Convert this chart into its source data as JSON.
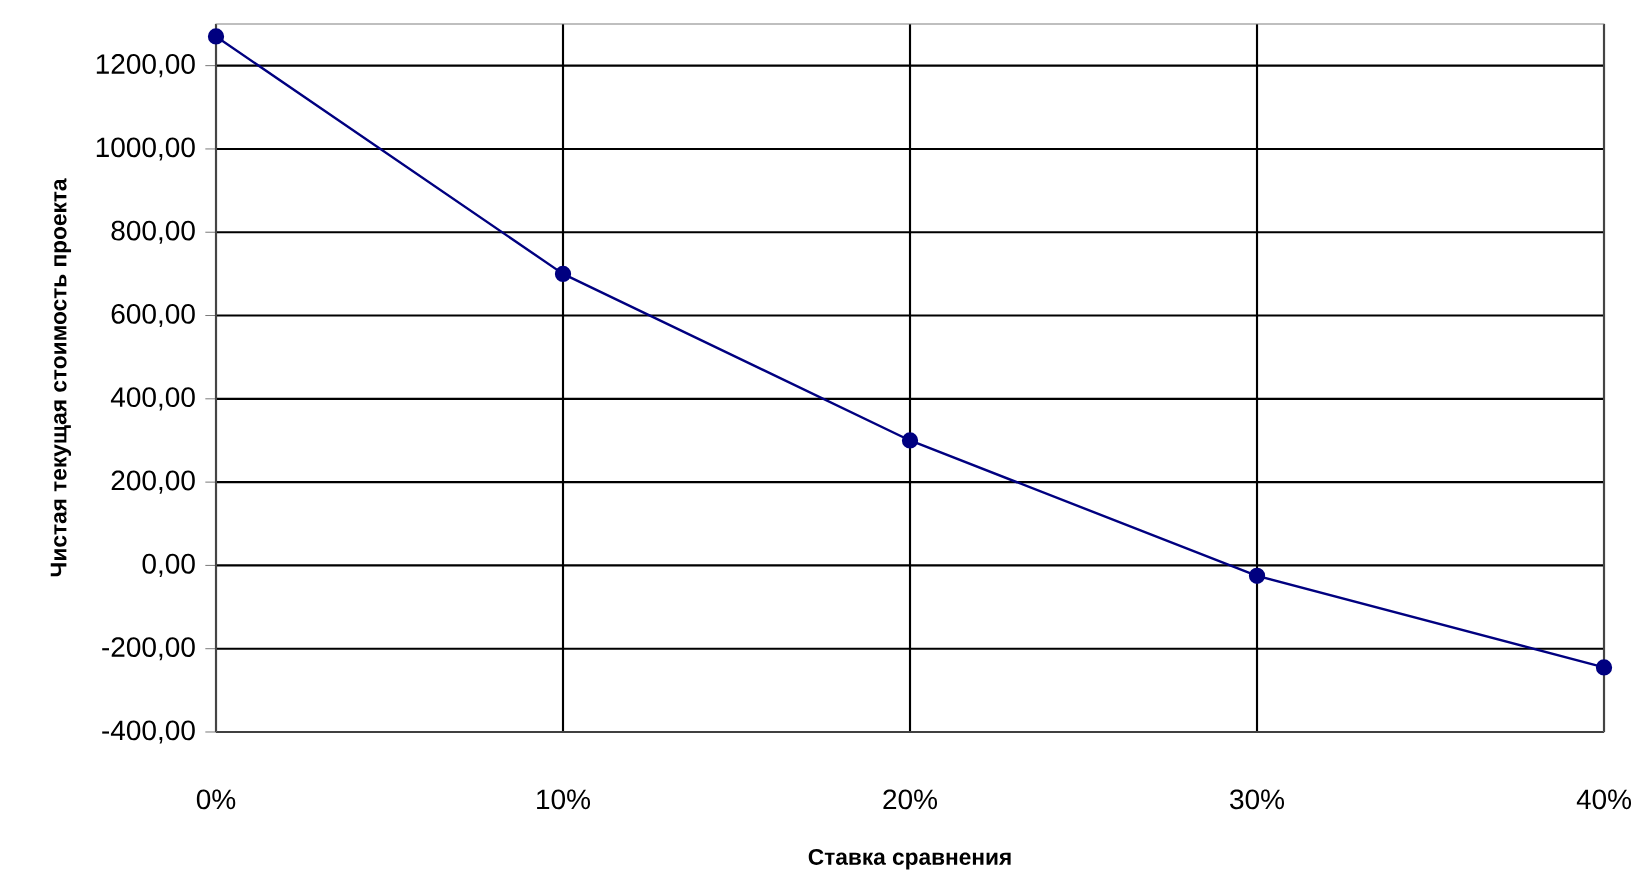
{
  "chart_data": {
    "type": "line",
    "xlabel": "Ставка сравнения",
    "ylabel": "Чистая текущая стоимость проекта",
    "x": [
      0,
      10,
      20,
      30,
      40
    ],
    "series": [
      {
        "color": "#000080",
        "values": [
          1270,
          700,
          300,
          -25,
          -245
        ]
      }
    ],
    "xlim": [
      0,
      40
    ],
    "ylim": [
      -400,
      1300
    ],
    "xticks": [
      {
        "value": 0,
        "label": "0%"
      },
      {
        "value": 10,
        "label": "10%"
      },
      {
        "value": 20,
        "label": "20%"
      },
      {
        "value": 30,
        "label": "30%"
      },
      {
        "value": 40,
        "label": "40%"
      }
    ],
    "yticks": [
      {
        "value": -400,
        "label": "-400,00"
      },
      {
        "value": -200,
        "label": "-200,00"
      },
      {
        "value": 0,
        "label": "0,00"
      },
      {
        "value": 200,
        "label": "200,00"
      },
      {
        "value": 400,
        "label": "400,00"
      },
      {
        "value": 600,
        "label": "600,00"
      },
      {
        "value": 800,
        "label": "800,00"
      },
      {
        "value": 1000,
        "label": "1000,00"
      },
      {
        "value": 1200,
        "label": "1200,00"
      }
    ],
    "grid": true,
    "marker": "circle",
    "line_style": "solid"
  }
}
